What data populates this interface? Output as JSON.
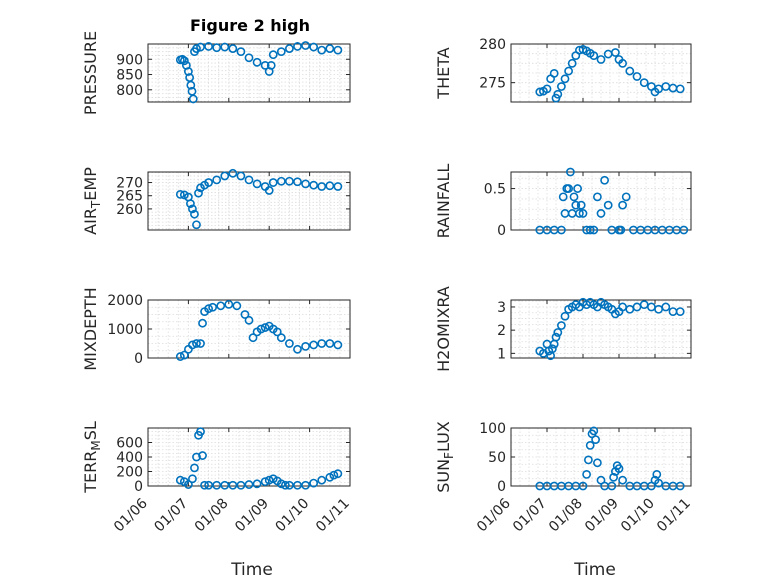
{
  "figure_title": "Figure 2 high",
  "colors": {
    "marker": "#0072BD",
    "axis": "#262626",
    "grid": "#dcdcdc"
  },
  "x_axis": {
    "label": "Time",
    "tick_labels": [
      "01/06",
      "01/07",
      "01/08",
      "01/09",
      "01/10",
      "01/11"
    ],
    "tick_values": [
      6,
      7,
      8,
      9,
      10,
      11
    ]
  },
  "chart_data": [
    {
      "type": "scatter",
      "title": "Figure 2 high",
      "ylabel": "PRESSURE",
      "ylim": [
        760,
        950
      ],
      "yticks": [
        800,
        850,
        900
      ],
      "grid": true,
      "x": [
        6.8,
        6.85,
        6.9,
        6.95,
        7.0,
        7.03,
        7.06,
        7.09,
        7.12,
        7.15,
        7.2,
        7.3,
        7.5,
        7.7,
        7.9,
        8.1,
        8.3,
        8.5,
        8.7,
        8.9,
        9.0,
        9.05,
        9.1,
        9.3,
        9.5,
        9.7,
        9.9,
        10.1,
        10.3,
        10.5,
        10.7
      ],
      "y": [
        898,
        900,
        895,
        880,
        860,
        840,
        815,
        795,
        770,
        925,
        935,
        940,
        942,
        938,
        940,
        935,
        925,
        905,
        890,
        880,
        860,
        880,
        915,
        925,
        935,
        942,
        945,
        940,
        930,
        935,
        930
      ]
    },
    {
      "type": "scatter",
      "title": "",
      "ylabel": "THETA",
      "ylim": [
        272.5,
        280
      ],
      "yticks": [
        275,
        280
      ],
      "grid": true,
      "x": [
        6.8,
        6.9,
        7.0,
        7.1,
        7.2,
        7.25,
        7.3,
        7.4,
        7.5,
        7.6,
        7.7,
        7.8,
        7.9,
        8.0,
        8.1,
        8.2,
        8.3,
        8.5,
        8.7,
        8.9,
        9.0,
        9.1,
        9.3,
        9.5,
        9.7,
        9.9,
        10.0,
        10.1,
        10.3,
        10.5,
        10.7
      ],
      "y": [
        273.8,
        273.9,
        274.2,
        275.5,
        276.2,
        273.0,
        273.5,
        274.5,
        275.5,
        276.5,
        277.5,
        278.5,
        279.2,
        279.3,
        279.1,
        278.8,
        278.5,
        278.0,
        278.7,
        278.9,
        278.0,
        277.5,
        276.5,
        275.8,
        275.0,
        274.5,
        273.8,
        274.2,
        274.5,
        274.3,
        274.2
      ]
    },
    {
      "type": "scatter",
      "title": "",
      "ylabel": "AIR_TEMP",
      "ylim": [
        252,
        274
      ],
      "yticks": [
        260,
        265,
        270
      ],
      "grid": true,
      "x": [
        6.8,
        6.9,
        7.0,
        7.05,
        7.1,
        7.15,
        7.2,
        7.25,
        7.3,
        7.4,
        7.5,
        7.7,
        7.9,
        8.1,
        8.3,
        8.5,
        8.7,
        8.9,
        9.0,
        9.1,
        9.3,
        9.5,
        9.7,
        9.9,
        10.1,
        10.3,
        10.5,
        10.7
      ],
      "y": [
        265.5,
        265.3,
        264.5,
        262,
        260,
        258,
        254,
        266,
        268,
        269,
        270,
        271,
        272.5,
        273.5,
        272.5,
        271,
        269.5,
        268.5,
        267,
        270,
        270.5,
        270.5,
        270.3,
        269.5,
        269,
        268.5,
        268.8,
        268.5
      ]
    },
    {
      "type": "scatter",
      "title": "",
      "ylabel": "RAINFALL",
      "ylim": [
        0,
        0.7
      ],
      "yticks": [
        0,
        0.5
      ],
      "grid": true,
      "x": [
        6.8,
        7.0,
        7.2,
        7.4,
        7.45,
        7.5,
        7.55,
        7.6,
        7.65,
        7.7,
        7.75,
        7.8,
        7.85,
        7.9,
        7.95,
        8.0,
        8.1,
        8.2,
        8.3,
        8.4,
        8.5,
        8.6,
        8.7,
        8.8,
        9.0,
        9.05,
        9.1,
        9.2,
        9.4,
        9.6,
        9.8,
        10.0,
        10.2,
        10.4,
        10.6,
        10.8
      ],
      "y": [
        0,
        0,
        0,
        0,
        0.4,
        0.2,
        0.5,
        0.5,
        0.7,
        0.2,
        0.4,
        0.3,
        0.5,
        0.2,
        0.3,
        0.2,
        0,
        0,
        0,
        0.4,
        0.2,
        0.6,
        0.3,
        0,
        0,
        0,
        0.3,
        0.4,
        0,
        0,
        0,
        0,
        0,
        0,
        0,
        0
      ]
    },
    {
      "type": "scatter",
      "title": "",
      "ylabel": "MIXDEPTH",
      "ylim": [
        0,
        2000
      ],
      "yticks": [
        0,
        1000,
        2000
      ],
      "grid": true,
      "x": [
        6.8,
        6.9,
        7.0,
        7.1,
        7.2,
        7.3,
        7.35,
        7.4,
        7.5,
        7.6,
        7.8,
        8.0,
        8.2,
        8.4,
        8.5,
        8.6,
        8.7,
        8.8,
        8.9,
        9.0,
        9.1,
        9.2,
        9.3,
        9.5,
        9.7,
        9.9,
        10.1,
        10.3,
        10.5,
        10.7
      ],
      "y": [
        50,
        100,
        300,
        450,
        500,
        500,
        1200,
        1600,
        1700,
        1750,
        1800,
        1850,
        1800,
        1500,
        1300,
        700,
        900,
        1000,
        1050,
        1100,
        1000,
        900,
        700,
        500,
        300,
        400,
        450,
        500,
        500,
        450
      ]
    },
    {
      "type": "scatter",
      "title": "",
      "ylabel": "H2OMIXRA",
      "ylim": [
        0.8,
        3.3
      ],
      "yticks": [
        1,
        2,
        3
      ],
      "grid": true,
      "x": [
        6.8,
        6.9,
        7.0,
        7.05,
        7.1,
        7.15,
        7.2,
        7.25,
        7.3,
        7.4,
        7.5,
        7.6,
        7.7,
        7.8,
        7.9,
        8.0,
        8.1,
        8.2,
        8.3,
        8.4,
        8.5,
        8.6,
        8.7,
        8.8,
        8.9,
        9.0,
        9.1,
        9.3,
        9.5,
        9.7,
        9.9,
        10.1,
        10.3,
        10.5,
        10.7
      ],
      "y": [
        1.1,
        1.0,
        1.4,
        1.1,
        0.9,
        1.2,
        1.4,
        1.7,
        1.9,
        2.2,
        2.6,
        2.9,
        3.0,
        3.1,
        3.0,
        3.2,
        3.1,
        3.2,
        3.1,
        3.0,
        3.2,
        3.1,
        3.0,
        2.9,
        2.7,
        2.8,
        3.0,
        2.9,
        3.0,
        3.1,
        3.0,
        2.9,
        3.0,
        2.8,
        2.8
      ]
    },
    {
      "type": "scatter",
      "title": "",
      "ylabel": "TERR_MSL",
      "ylim": [
        0,
        800
      ],
      "yticks": [
        0,
        200,
        400,
        600
      ],
      "grid": true,
      "x": [
        6.8,
        6.9,
        7.0,
        7.1,
        7.15,
        7.2,
        7.25,
        7.3,
        7.35,
        7.4,
        7.5,
        7.7,
        7.9,
        8.1,
        8.3,
        8.5,
        8.7,
        8.9,
        9.0,
        9.1,
        9.2,
        9.3,
        9.4,
        9.5,
        9.7,
        9.9,
        10.1,
        10.3,
        10.5,
        10.6,
        10.7
      ],
      "y": [
        80,
        60,
        20,
        100,
        250,
        400,
        700,
        750,
        420,
        10,
        10,
        10,
        10,
        10,
        10,
        20,
        30,
        60,
        80,
        100,
        70,
        30,
        10,
        10,
        10,
        10,
        40,
        80,
        120,
        150,
        170
      ]
    },
    {
      "type": "scatter",
      "title": "",
      "ylabel": "SUN_FLUX",
      "ylim": [
        0,
        100
      ],
      "yticks": [
        0,
        50,
        100
      ],
      "grid": true,
      "x": [
        6.8,
        7.0,
        7.2,
        7.4,
        7.6,
        7.8,
        8.0,
        8.1,
        8.15,
        8.2,
        8.25,
        8.3,
        8.35,
        8.4,
        8.5,
        8.6,
        8.8,
        8.85,
        8.9,
        8.95,
        9.0,
        9.1,
        9.3,
        9.5,
        9.7,
        9.9,
        10.0,
        10.05,
        10.1,
        10.3,
        10.5,
        10.7
      ],
      "y": [
        0,
        0,
        0,
        0,
        0,
        0,
        0,
        20,
        45,
        70,
        90,
        95,
        80,
        40,
        10,
        0,
        0,
        15,
        25,
        35,
        30,
        10,
        0,
        0,
        0,
        0,
        10,
        20,
        5,
        0,
        0,
        0
      ]
    }
  ]
}
